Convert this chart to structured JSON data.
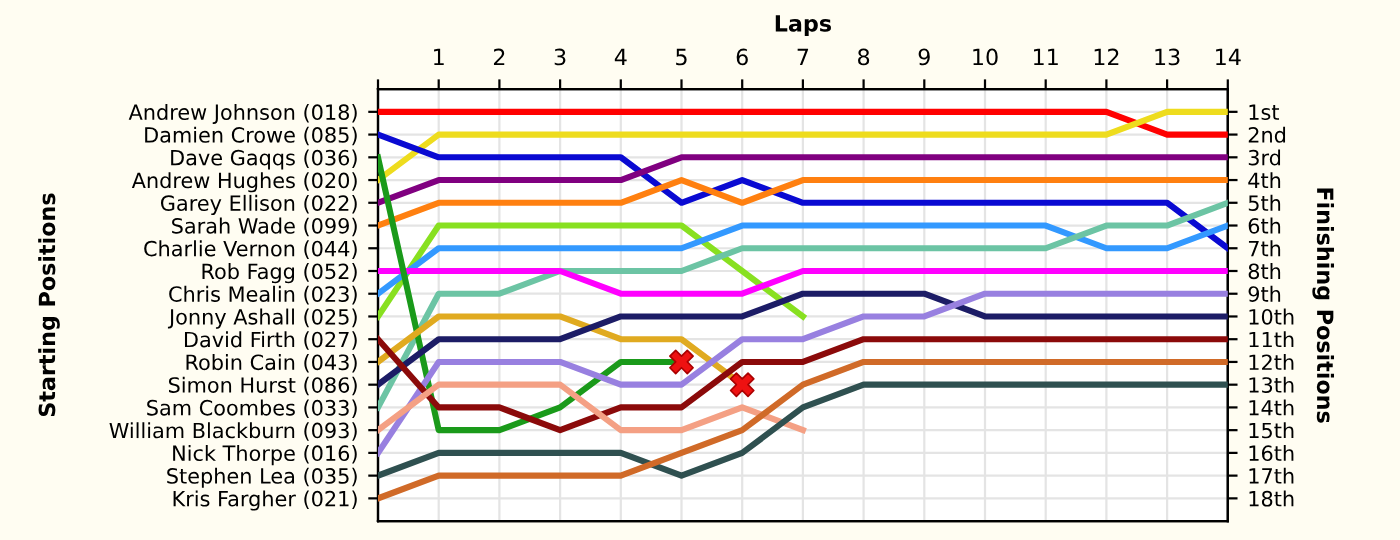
{
  "chart_data": {
    "type": "line",
    "xlabel": "Laps",
    "annotations": [
      "Starting Positions"
    ],
    "y2label": "Finishing Positions",
    "x": [
      0,
      1,
      2,
      3,
      4,
      5,
      6,
      7,
      8,
      9,
      10,
      11,
      12,
      13,
      14
    ],
    "xlim": [
      0,
      14
    ],
    "xticks": [
      {
        "value": 0,
        "label": null
      },
      1,
      2,
      3,
      4,
      5,
      6,
      7,
      8,
      9,
      10,
      11,
      12,
      13,
      14
    ],
    "y_categories": [
      "Andrew Johnson (018)",
      "Damien Crowe (085)",
      "Dave Gaqqs (036)",
      "Andrew Hughes (020)",
      "Garey Ellison (022)",
      "Sarah Wade (099)",
      "Charlie Vernon (044)",
      "Rob Fagg (052)",
      "Chris Mealin (023)",
      "Jonny Ashall (025)",
      "David Firth (027)",
      "Robin Cain (043)",
      "Simon Hurst (086)",
      "Sam Coombes (033)",
      "William Blackburn (093)",
      "Nick Thorpe (016)",
      "Stephen Lea (035)",
      "Kris Fargher (021)"
    ],
    "y2lim": [
      19,
      0
    ],
    "y2ticks": [
      {
        "value": 1,
        "label": "1st"
      },
      {
        "value": 2,
        "label": "2nd"
      },
      {
        "value": 3,
        "label": "3rd"
      },
      {
        "value": 4,
        "label": "4th"
      },
      {
        "value": 5,
        "label": "5th"
      },
      {
        "value": 6,
        "label": "6th"
      },
      {
        "value": 7,
        "label": "7th"
      },
      {
        "value": 8,
        "label": "8th"
      },
      {
        "value": 9,
        "label": "9th"
      },
      {
        "value": 10,
        "label": "10th"
      },
      {
        "value": 11,
        "label": "11th"
      },
      {
        "value": 12,
        "label": "12th"
      },
      {
        "value": 13,
        "label": "13th"
      },
      {
        "value": 14,
        "label": "14th"
      },
      {
        "value": 15,
        "label": "15th"
      },
      {
        "value": 16,
        "label": "16th"
      },
      {
        "value": 17,
        "label": "17th"
      },
      {
        "value": 18,
        "label": "18th"
      }
    ],
    "grid": true,
    "marker": "none",
    "line_style": "solid",
    "series": [
      {
        "axis": "y2",
        "color": "#ff0000",
        "values": [
          1,
          1,
          1,
          1,
          1,
          1,
          1,
          1,
          1,
          1,
          1,
          1,
          1,
          2,
          2
        ]
      },
      {
        "axis": "y2",
        "color": "#eedc1e",
        "values": [
          4,
          2,
          2,
          2,
          2,
          2,
          2,
          2,
          2,
          2,
          2,
          2,
          2,
          1,
          1
        ]
      },
      {
        "axis": "y2",
        "color": "#0a0ad2",
        "values": [
          2,
          3,
          3,
          3,
          3,
          5,
          4,
          5,
          5,
          5,
          5,
          5,
          5,
          5,
          7
        ]
      },
      {
        "axis": "y2",
        "color": "#800080",
        "values": [
          5,
          4,
          4,
          4,
          4,
          3,
          3,
          3,
          3,
          3,
          3,
          3,
          3,
          3,
          3
        ]
      },
      {
        "axis": "y2",
        "color": "#ff8010",
        "values": [
          6,
          5,
          5,
          5,
          5,
          4,
          5,
          4,
          4,
          4,
          4,
          4,
          4,
          4,
          4
        ]
      },
      {
        "axis": "y2",
        "color": "#88e020",
        "values": [
          10,
          6,
          6,
          6,
          6,
          6,
          8,
          10,
          null,
          null,
          null,
          null,
          null,
          null,
          null
        ]
      },
      {
        "axis": "y2",
        "color": "#3399ff",
        "values": [
          9,
          7,
          7,
          7,
          7,
          7,
          6,
          6,
          6,
          6,
          6,
          6,
          7,
          7,
          6
        ]
      },
      {
        "axis": "y2",
        "color": "#6cc4a4",
        "values": [
          14,
          9,
          9,
          8,
          8,
          8,
          7,
          7,
          7,
          7,
          7,
          7,
          6,
          6,
          5
        ]
      },
      {
        "axis": "y2",
        "color": "#ff00ff",
        "values": [
          8,
          8,
          8,
          8,
          9,
          9,
          9,
          8,
          8,
          8,
          8,
          8,
          8,
          8,
          8
        ]
      },
      {
        "axis": "y2",
        "color": "#1a9a1a",
        "values": [
          3,
          15,
          15,
          14,
          12,
          12,
          null,
          null,
          null,
          null,
          null,
          null,
          null,
          null,
          null
        ]
      },
      {
        "axis": "y2",
        "color": "#e0aa20",
        "values": [
          12,
          10,
          10,
          10,
          11,
          11,
          13,
          null,
          null,
          null,
          null,
          null,
          null,
          null,
          null
        ]
      },
      {
        "axis": "y2",
        "color": "#1c1c66",
        "values": [
          13,
          11,
          11,
          11,
          10,
          10,
          10,
          9,
          9,
          9,
          10,
          10,
          10,
          10,
          10
        ]
      },
      {
        "axis": "y2",
        "color": "#9880e0",
        "values": [
          16,
          12,
          12,
          12,
          13,
          13,
          11,
          11,
          10,
          10,
          9,
          9,
          9,
          9,
          9
        ]
      },
      {
        "axis": "y2",
        "color": "#8b0a0a",
        "values": [
          11,
          14,
          14,
          15,
          14,
          14,
          12,
          12,
          11,
          11,
          11,
          11,
          11,
          11,
          11
        ]
      },
      {
        "axis": "y2",
        "color": "#f4a084",
        "values": [
          15,
          13,
          13,
          13,
          15,
          15,
          14,
          15,
          null,
          null,
          null,
          null,
          null,
          null,
          null
        ]
      },
      {
        "axis": "y2",
        "color": "#2f5050",
        "values": [
          17,
          16,
          16,
          16,
          16,
          17,
          16,
          14,
          13,
          13,
          13,
          13,
          13,
          13,
          13
        ]
      },
      {
        "axis": "y2",
        "color": "#d06a28",
        "values": [
          18,
          17,
          17,
          17,
          17,
          16,
          15,
          13,
          12,
          12,
          12,
          12,
          12,
          12,
          12
        ]
      },
      {
        "axis": "y2",
        "type": "scatter",
        "marker": "cross",
        "color": "#ee1111",
        "x": [
          5,
          6
        ],
        "values": [
          12,
          13
        ]
      }
    ]
  }
}
